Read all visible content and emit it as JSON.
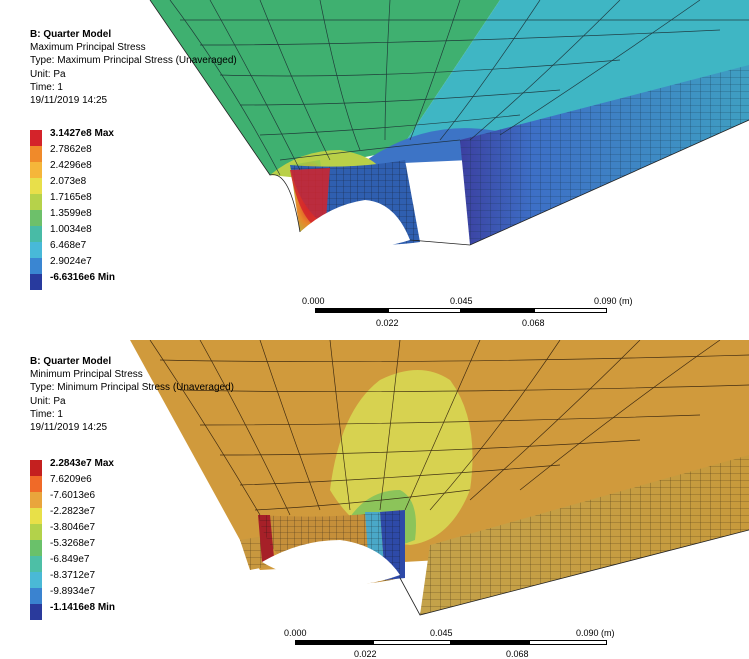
{
  "panels": [
    {
      "title": "B: Quarter Model",
      "result": "Maximum Principal Stress",
      "type": "Type: Maximum Principal Stress (Unaveraged)",
      "unit": "Unit: Pa",
      "time": "Time: 1",
      "date": "19/11/2019 14:25",
      "legend": [
        {
          "label": "3.1427e8 Max",
          "color": "#d4232a",
          "bold": true
        },
        {
          "label": "2.7862e8",
          "color": "#f08a2a",
          "bold": false
        },
        {
          "label": "2.4296e8",
          "color": "#f5b63a",
          "bold": false
        },
        {
          "label": "2.073e8",
          "color": "#e8df4a",
          "bold": false
        },
        {
          "label": "1.7165e8",
          "color": "#b6d24a",
          "bold": false
        },
        {
          "label": "1.3599e8",
          "color": "#6dc06a",
          "bold": false
        },
        {
          "label": "1.0034e8",
          "color": "#48bba6",
          "bold": false
        },
        {
          "label": "6.468e7",
          "color": "#48b9d8",
          "bold": false
        },
        {
          "label": "2.9024e7",
          "color": "#3a86d2",
          "bold": false
        },
        {
          "label": "-6.6316e6 Min",
          "color": "#283a9e",
          "bold": true
        }
      ],
      "scale_top": [
        "0.000",
        "0.045",
        "0.090 (m)"
      ],
      "scale_bottom": [
        "0.022",
        "0.068"
      ]
    },
    {
      "title": "B: Quarter Model",
      "result": "Minimum Principal Stress",
      "type": "Type: Minimum Principal Stress (Unaveraged)",
      "unit": "Unit: Pa",
      "time": "Time: 1",
      "date": "19/11/2019 14:25",
      "legend": [
        {
          "label": "2.2843e7 Max",
          "color": "#c4201f",
          "bold": true
        },
        {
          "label": "7.6209e6",
          "color": "#f06a28",
          "bold": false
        },
        {
          "label": "-7.6013e6",
          "color": "#e9a53c",
          "bold": false
        },
        {
          "label": "-2.2823e7",
          "color": "#e8e048",
          "bold": false
        },
        {
          "label": "-3.8046e7",
          "color": "#b3d24a",
          "bold": false
        },
        {
          "label": "-5.3268e7",
          "color": "#6ac16a",
          "bold": false
        },
        {
          "label": "-6.849e7",
          "color": "#4dbfa6",
          "bold": false
        },
        {
          "label": "-8.3712e7",
          "color": "#4ab9d6",
          "bold": false
        },
        {
          "label": "-9.8934e7",
          "color": "#3a83d0",
          "bold": false
        },
        {
          "label": "-1.1416e8 Min",
          "color": "#2a3a9c",
          "bold": true
        }
      ],
      "scale_top": [
        "0.000",
        "0.045",
        "0.090 (m)"
      ],
      "scale_bottom": [
        "0.022",
        "0.068"
      ]
    }
  ]
}
